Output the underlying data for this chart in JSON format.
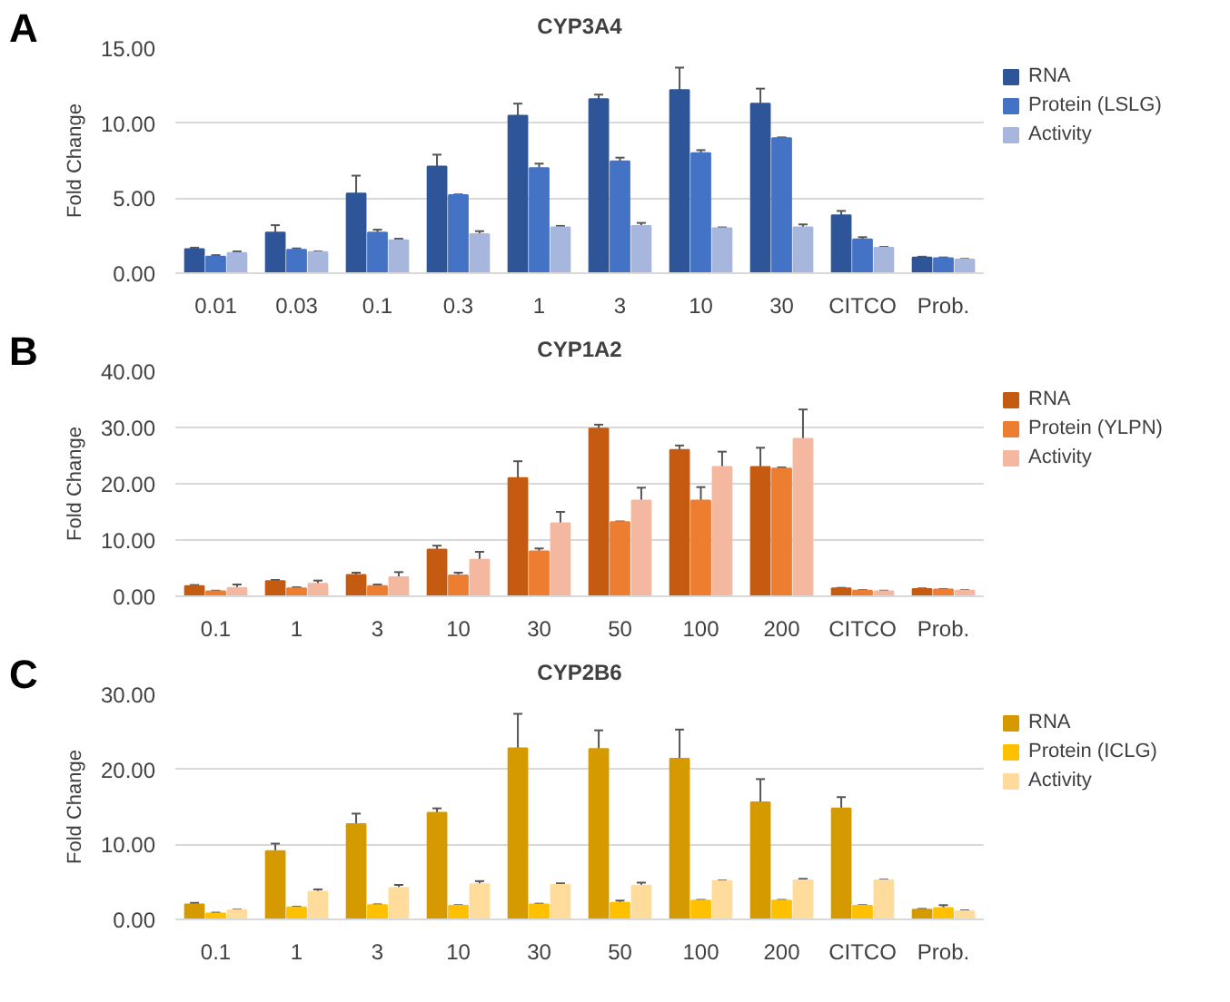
{
  "chart_data": [
    {
      "type": "bar",
      "title": "CYP3A4",
      "ylabel": "Fold Change",
      "annotations": [
        "A"
      ],
      "categories": [
        "0.01",
        "0.03",
        "0.1",
        "0.3",
        "1",
        "3",
        "10",
        "30",
        "CITCO",
        "Prob."
      ],
      "series": [
        {
          "name": "RNA",
          "color": "#2e5597",
          "values": [
            1.6,
            2.7,
            5.3,
            7.1,
            10.5,
            11.6,
            12.2,
            11.3,
            3.85,
            1.05
          ],
          "errors": [
            0.1,
            0.5,
            1.2,
            0.8,
            0.8,
            0.3,
            1.5,
            1.0,
            0.3,
            0.05
          ]
        },
        {
          "name": "Protein (LSLG)",
          "color": "#4472c4",
          "values": [
            1.1,
            1.55,
            2.7,
            5.2,
            7.0,
            7.45,
            8.0,
            9.0,
            2.25,
            1.0
          ],
          "errors": [
            0.1,
            0.1,
            0.2,
            0.05,
            0.3,
            0.25,
            0.2,
            0.05,
            0.15,
            0.05
          ]
        },
        {
          "name": "Activity",
          "color": "#a6b6dc",
          "values": [
            1.35,
            1.4,
            2.2,
            2.6,
            3.05,
            3.15,
            3.0,
            3.05,
            1.7,
            0.9
          ],
          "errors": [
            0.1,
            0.05,
            0.1,
            0.2,
            0.1,
            0.2,
            0.05,
            0.2,
            0.05,
            0.05
          ]
        }
      ],
      "ylim": [
        0,
        15
      ],
      "yticks": [
        {
          "value": 0,
          "label": "0.00"
        },
        {
          "value": 5,
          "label": "5.00"
        },
        {
          "value": 10,
          "label": "10.00"
        },
        {
          "value": 15,
          "label": "15.00"
        }
      ],
      "grid": "y",
      "legend": "right"
    },
    {
      "type": "bar",
      "title": "CYP1A2",
      "ylabel": "Fold Change",
      "annotations": [
        "B"
      ],
      "categories": [
        "0.1",
        "1",
        "3",
        "10",
        "30",
        "50",
        "100",
        "200",
        "CITCO",
        "Prob."
      ],
      "series": [
        {
          "name": "RNA",
          "color": "#c55a11",
          "values": [
            1.8,
            2.7,
            3.8,
            8.3,
            21,
            29.8,
            26,
            23,
            1.4,
            1.3
          ],
          "errors": [
            0.2,
            0.2,
            0.4,
            0.7,
            3,
            0.7,
            0.8,
            3.4,
            0.1,
            0.1
          ]
        },
        {
          "name": "Protein (YLPN)",
          "color": "#ed7d31",
          "values": [
            0.9,
            1.4,
            1.8,
            3.7,
            8,
            13.2,
            17,
            22.7,
            1.0,
            1.2
          ],
          "errors": [
            0.1,
            0.2,
            0.3,
            0.5,
            0.5,
            0.1,
            2.4,
            0.2,
            0.1,
            0.1
          ]
        },
        {
          "name": "Activity",
          "color": "#f4b8a0",
          "values": [
            1.5,
            2.2,
            3.4,
            6.5,
            13,
            17,
            23,
            28,
            0.9,
            1.0
          ],
          "errors": [
            0.6,
            0.6,
            0.9,
            1.4,
            2,
            2.3,
            2.7,
            5.2,
            0.1,
            0.1
          ]
        }
      ],
      "ylim": [
        0,
        40
      ],
      "yticks": [
        {
          "value": 0,
          "label": "0.00"
        },
        {
          "value": 10,
          "label": "10.00"
        },
        {
          "value": 20,
          "label": "20.00"
        },
        {
          "value": 30,
          "label": "30.00"
        },
        {
          "value": 40,
          "label": "40.00"
        }
      ],
      "grid": "y",
      "legend": "right"
    },
    {
      "type": "bar",
      "title": "CYP2B6",
      "ylabel": "Fold Change",
      "annotations": [
        "C"
      ],
      "categories": [
        "0.1",
        "1",
        "3",
        "10",
        "30",
        "50",
        "100",
        "200",
        "CITCO",
        "Prob."
      ],
      "series": [
        {
          "name": "RNA",
          "color": "#d49a00",
          "values": [
            2.0,
            9.1,
            12.7,
            14.2,
            22.8,
            22.7,
            21.4,
            15.6,
            14.8,
            1.3
          ],
          "errors": [
            0.2,
            1.0,
            1.4,
            0.6,
            4.6,
            2.5,
            3.9,
            3.1,
            1.5,
            0.1
          ]
        },
        {
          "name": "Protein (ICLG)",
          "color": "#ffc000",
          "values": [
            0.8,
            1.6,
            1.9,
            1.8,
            2.0,
            2.2,
            2.5,
            2.5,
            1.8,
            1.5
          ],
          "errors": [
            0.1,
            0.1,
            0.1,
            0.1,
            0.1,
            0.3,
            0.1,
            0.1,
            0.1,
            0.4
          ]
        },
        {
          "name": "Activity",
          "color": "#ffdc9c",
          "values": [
            1.2,
            3.7,
            4.2,
            4.7,
            4.6,
            4.5,
            5.1,
            5.2,
            5.2,
            1.1
          ],
          "errors": [
            0.1,
            0.3,
            0.4,
            0.4,
            0.2,
            0.4,
            0.1,
            0.2,
            0.1,
            0.1
          ]
        }
      ],
      "ylim": [
        0,
        30
      ],
      "yticks": [
        {
          "value": 0,
          "label": "0.00"
        },
        {
          "value": 10,
          "label": "10.00"
        },
        {
          "value": 20,
          "label": "20.00"
        },
        {
          "value": 30,
          "label": "30.00"
        }
      ],
      "grid": "y",
      "legend": "right"
    }
  ]
}
